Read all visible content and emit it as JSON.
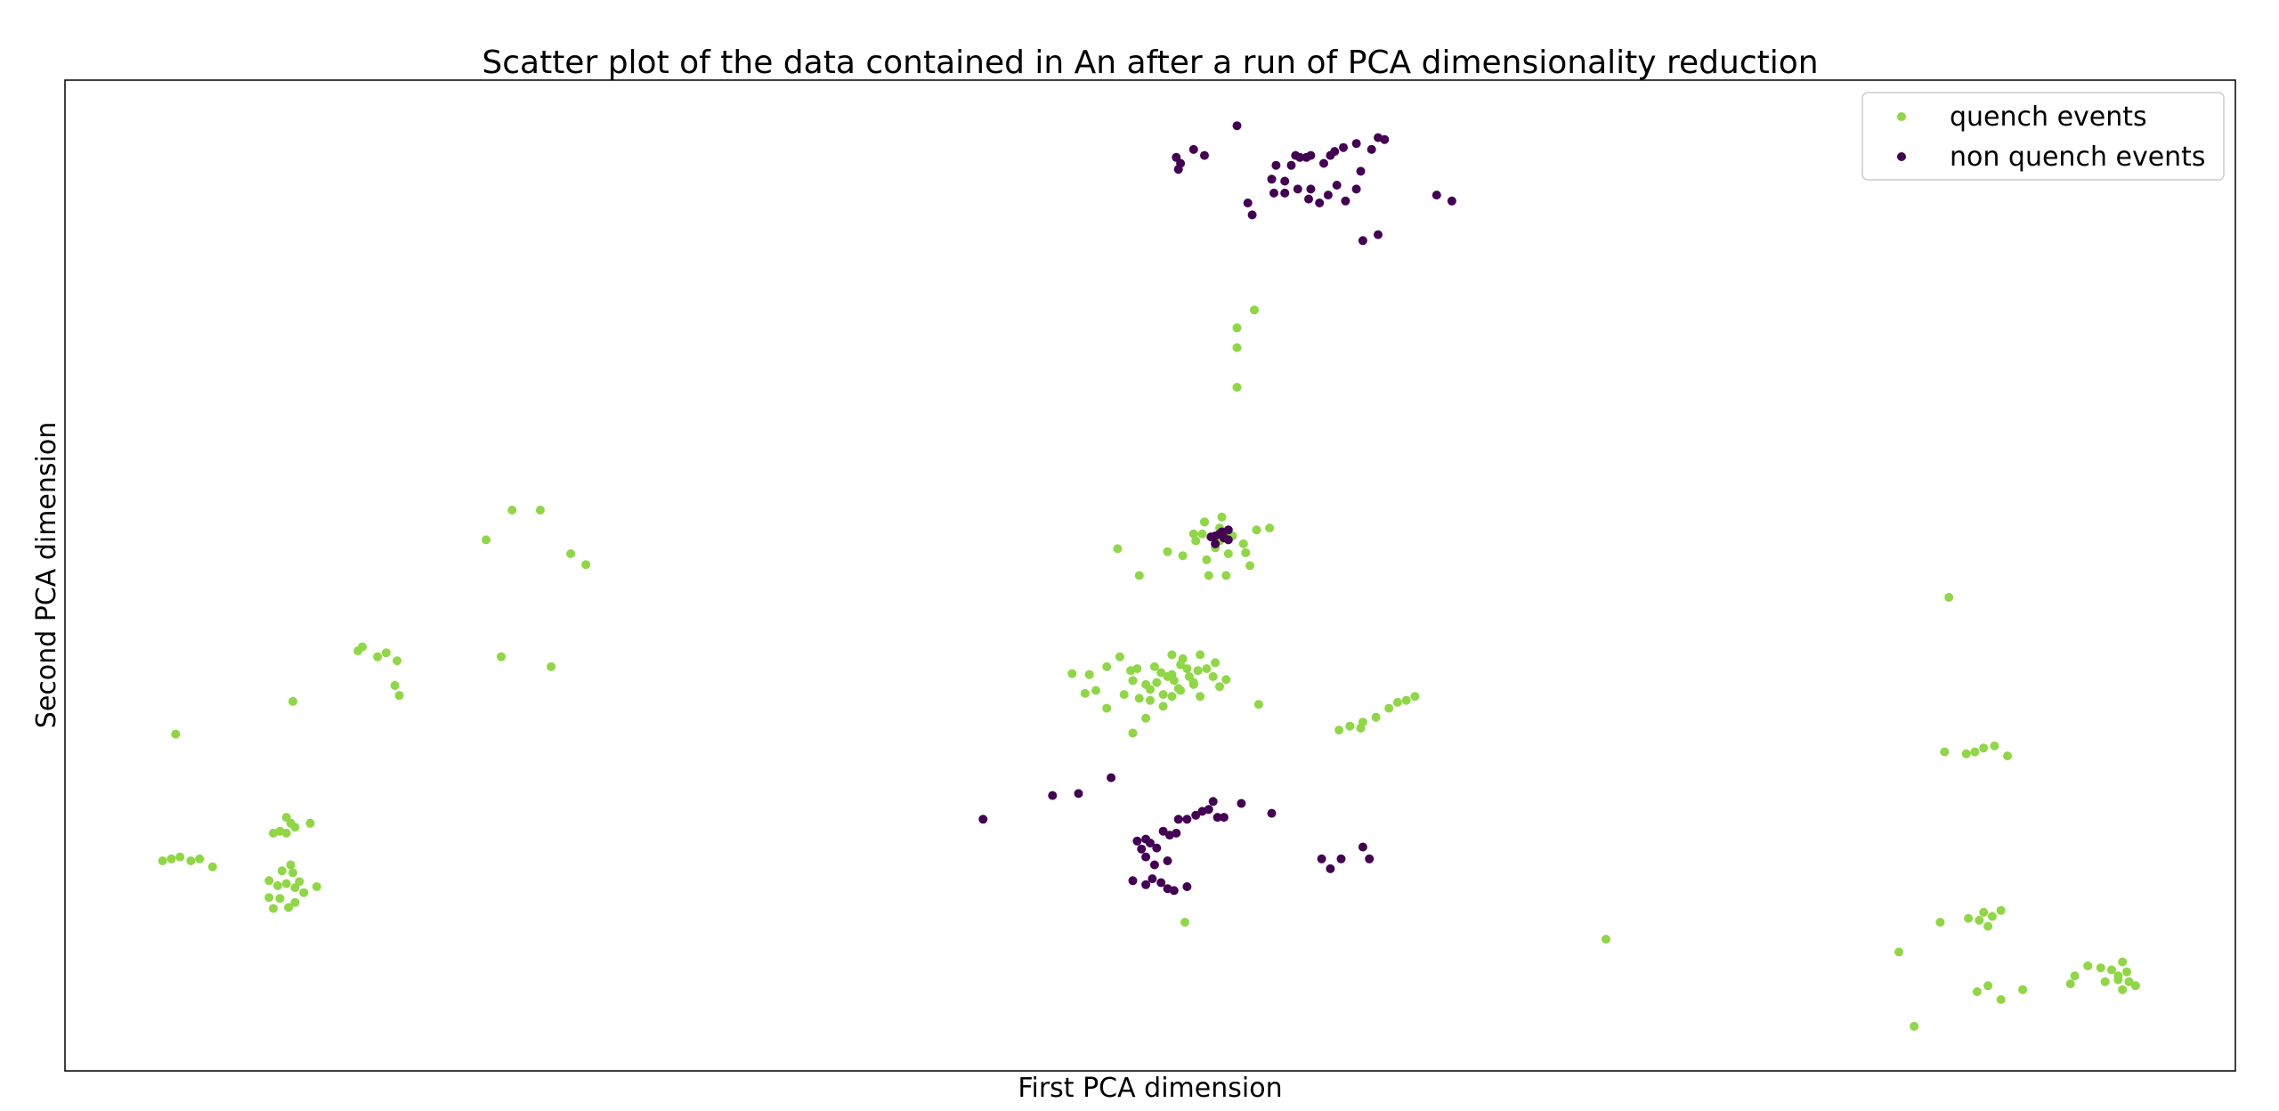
{
  "chart_data": {
    "type": "scatter",
    "title": "Scatter plot of the data contained in An after a run of PCA dimensionality reduction",
    "xlabel": "First PCA dimension",
    "ylabel": "Second PCA dimension",
    "xlim": [
      0,
      100
    ],
    "ylim": [
      0,
      100
    ],
    "xticks": [],
    "yticks": [],
    "grid": false,
    "legend_position": "top-right",
    "series": [
      {
        "name": "quench events",
        "color": "#8fd744",
        "points": [
          [
            5.1,
            34.0
          ],
          [
            4.5,
            21.2
          ],
          [
            4.9,
            21.4
          ],
          [
            5.3,
            21.6
          ],
          [
            5.8,
            21.2
          ],
          [
            6.2,
            21.4
          ],
          [
            6.8,
            20.6
          ],
          [
            9.9,
            24.2
          ],
          [
            9.6,
            24.0
          ],
          [
            10.2,
            24.0
          ],
          [
            10.2,
            25.6
          ],
          [
            10.4,
            25.0
          ],
          [
            10.6,
            24.6
          ],
          [
            11.3,
            25.0
          ],
          [
            9.4,
            19.2
          ],
          [
            9.8,
            18.7
          ],
          [
            10.2,
            18.9
          ],
          [
            10.5,
            20.0
          ],
          [
            10.6,
            18.5
          ],
          [
            10.8,
            19.1
          ],
          [
            11.0,
            18.0
          ],
          [
            10.0,
            20.2
          ],
          [
            10.4,
            20.8
          ],
          [
            9.4,
            17.5
          ],
          [
            9.6,
            16.4
          ],
          [
            9.9,
            17.4
          ],
          [
            10.3,
            16.5
          ],
          [
            10.6,
            17.0
          ],
          [
            11.6,
            18.6
          ],
          [
            10.5,
            37.3
          ],
          [
            13.5,
            42.4
          ],
          [
            13.7,
            42.8
          ],
          [
            14.4,
            41.8
          ],
          [
            14.8,
            42.2
          ],
          [
            15.3,
            41.4
          ],
          [
            15.2,
            38.9
          ],
          [
            15.4,
            37.9
          ],
          [
            19.4,
            53.6
          ],
          [
            20.6,
            56.6
          ],
          [
            21.9,
            56.6
          ],
          [
            23.3,
            52.2
          ],
          [
            24.0,
            51.1
          ],
          [
            20.1,
            41.8
          ],
          [
            22.4,
            40.8
          ],
          [
            54.0,
            75.0
          ],
          [
            54.0,
            73.0
          ],
          [
            54.8,
            76.8
          ],
          [
            54.0,
            69.0
          ],
          [
            48.5,
            52.7
          ],
          [
            49.5,
            50.0
          ],
          [
            50.8,
            52.4
          ],
          [
            52.1,
            53.5
          ],
          [
            53.0,
            52.8
          ],
          [
            53.6,
            52.2
          ],
          [
            52.6,
            51.6
          ],
          [
            51.5,
            52.0
          ],
          [
            52.0,
            54.2
          ],
          [
            52.5,
            55.4
          ],
          [
            53.2,
            54.8
          ],
          [
            53.8,
            54.0
          ],
          [
            54.3,
            53.2
          ],
          [
            54.9,
            54.6
          ],
          [
            55.5,
            54.8
          ],
          [
            52.7,
            50.0
          ],
          [
            53.5,
            50.0
          ],
          [
            54.4,
            52.3
          ],
          [
            54.6,
            51.0
          ],
          [
            53.5,
            54.4
          ],
          [
            53.2,
            53.5
          ],
          [
            52.5,
            55.4
          ],
          [
            53.3,
            55.9
          ],
          [
            52.4,
            54.2
          ],
          [
            47.2,
            40.0
          ],
          [
            48.0,
            40.8
          ],
          [
            48.6,
            41.8
          ],
          [
            49.1,
            40.4
          ],
          [
            49.4,
            40.6
          ],
          [
            48.0,
            36.6
          ],
          [
            49.2,
            39.4
          ],
          [
            49.8,
            39.0
          ],
          [
            50.0,
            38.5
          ],
          [
            50.5,
            40.2
          ],
          [
            51.0,
            40.0
          ],
          [
            51.4,
            41.0
          ],
          [
            51.8,
            39.8
          ],
          [
            52.2,
            40.4
          ],
          [
            50.3,
            39.2
          ],
          [
            50.2,
            40.8
          ],
          [
            50.8,
            39.8
          ],
          [
            51.3,
            38.6
          ],
          [
            49.8,
            35.6
          ],
          [
            50.0,
            37.4
          ],
          [
            49.5,
            37.6
          ],
          [
            51.0,
            37.8
          ],
          [
            51.4,
            38.4
          ],
          [
            52.0,
            39.2
          ],
          [
            51.0,
            42.0
          ],
          [
            51.7,
            40.6
          ],
          [
            52.3,
            37.8
          ],
          [
            53.2,
            38.8
          ],
          [
            55.0,
            37.0
          ],
          [
            48.8,
            38.0
          ],
          [
            50.6,
            36.8
          ],
          [
            49.2,
            34.1
          ],
          [
            47.5,
            38.4
          ],
          [
            46.4,
            40.1
          ],
          [
            47.0,
            38.1
          ],
          [
            52.3,
            42.0
          ],
          [
            52.6,
            40.6
          ],
          [
            52.9,
            39.8
          ],
          [
            53.5,
            39.5
          ],
          [
            53.0,
            41.2
          ],
          [
            51.5,
            41.6
          ],
          [
            52.0,
            39.0
          ],
          [
            50.6,
            38.0
          ],
          [
            51.1,
            39.4
          ],
          [
            58.7,
            34.4
          ],
          [
            59.2,
            34.8
          ],
          [
            59.7,
            34.6
          ],
          [
            59.8,
            35.2
          ],
          [
            60.4,
            35.7
          ],
          [
            61.0,
            36.6
          ],
          [
            61.4,
            37.2
          ],
          [
            61.8,
            37.4
          ],
          [
            62.2,
            37.8
          ],
          [
            51.6,
            15.0
          ],
          [
            71.0,
            13.3
          ],
          [
            84.5,
            12.0
          ],
          [
            85.2,
            4.5
          ],
          [
            86.8,
            47.8
          ],
          [
            86.6,
            32.2
          ],
          [
            87.6,
            32.0
          ],
          [
            88.0,
            32.2
          ],
          [
            88.4,
            32.6
          ],
          [
            88.9,
            32.8
          ],
          [
            89.5,
            31.8
          ],
          [
            86.4,
            15.0
          ],
          [
            87.7,
            15.4
          ],
          [
            88.2,
            15.2
          ],
          [
            88.4,
            16.0
          ],
          [
            88.6,
            14.6
          ],
          [
            88.8,
            15.6
          ],
          [
            89.2,
            16.2
          ],
          [
            88.1,
            8.0
          ],
          [
            88.6,
            8.6
          ],
          [
            89.2,
            7.2
          ],
          [
            90.2,
            8.2
          ],
          [
            92.4,
            8.8
          ],
          [
            92.6,
            9.6
          ],
          [
            93.2,
            10.6
          ],
          [
            93.8,
            10.4
          ],
          [
            94.0,
            9.0
          ],
          [
            94.3,
            10.2
          ],
          [
            94.6,
            9.2
          ],
          [
            94.8,
            11.0
          ],
          [
            94.8,
            8.2
          ],
          [
            95.0,
            10.0
          ],
          [
            95.4,
            8.6
          ],
          [
            95.1,
            9.0
          ],
          [
            94.6,
            9.6
          ]
        ]
      },
      {
        "name": "non quench events",
        "color": "#440154",
        "points": [
          [
            51.2,
            92.2
          ],
          [
            51.4,
            91.6
          ],
          [
            51.3,
            91.0
          ],
          [
            52.0,
            93.0
          ],
          [
            52.5,
            92.4
          ],
          [
            54.0,
            95.4
          ],
          [
            55.6,
            90.0
          ],
          [
            55.8,
            91.4
          ],
          [
            56.2,
            89.8
          ],
          [
            56.5,
            91.4
          ],
          [
            56.7,
            92.4
          ],
          [
            56.9,
            92.2
          ],
          [
            57.2,
            92.2
          ],
          [
            57.4,
            92.4
          ],
          [
            58.0,
            91.6
          ],
          [
            58.3,
            92.4
          ],
          [
            58.5,
            92.8
          ],
          [
            58.9,
            93.2
          ],
          [
            59.5,
            93.6
          ],
          [
            60.2,
            93.0
          ],
          [
            60.5,
            94.2
          ],
          [
            60.8,
            94.0
          ],
          [
            55.7,
            88.6
          ],
          [
            56.2,
            88.6
          ],
          [
            56.8,
            89.0
          ],
          [
            57.4,
            89.0
          ],
          [
            57.3,
            88.0
          ],
          [
            57.8,
            87.6
          ],
          [
            58.2,
            88.4
          ],
          [
            58.6,
            89.4
          ],
          [
            54.5,
            87.6
          ],
          [
            54.7,
            86.4
          ],
          [
            59.0,
            87.8
          ],
          [
            59.7,
            90.8
          ],
          [
            59.5,
            89.0
          ],
          [
            63.2,
            88.4
          ],
          [
            63.9,
            87.8
          ],
          [
            59.8,
            83.8
          ],
          [
            60.5,
            84.4
          ],
          [
            53.0,
            54.0
          ],
          [
            53.3,
            54.4
          ],
          [
            53.6,
            54.6
          ],
          [
            53.4,
            53.8
          ],
          [
            53.0,
            53.2
          ],
          [
            52.8,
            53.9
          ],
          [
            53.6,
            53.6
          ],
          [
            53.2,
            54.2
          ],
          [
            42.3,
            25.4
          ],
          [
            45.5,
            27.8
          ],
          [
            46.7,
            28.0
          ],
          [
            48.2,
            29.6
          ],
          [
            49.6,
            22.4
          ],
          [
            49.4,
            23.2
          ],
          [
            49.8,
            23.4
          ],
          [
            50.0,
            23.0
          ],
          [
            50.3,
            22.5
          ],
          [
            50.6,
            24.2
          ],
          [
            50.9,
            23.8
          ],
          [
            51.2,
            24.0
          ],
          [
            51.3,
            25.4
          ],
          [
            51.7,
            25.4
          ],
          [
            52.1,
            25.8
          ],
          [
            52.4,
            26.2
          ],
          [
            52.7,
            26.4
          ],
          [
            52.9,
            27.2
          ],
          [
            53.1,
            25.6
          ],
          [
            53.4,
            25.6
          ],
          [
            54.2,
            27.0
          ],
          [
            55.6,
            26.0
          ],
          [
            49.8,
            21.6
          ],
          [
            50.2,
            20.8
          ],
          [
            50.8,
            21.2
          ],
          [
            49.2,
            19.2
          ],
          [
            49.8,
            18.8
          ],
          [
            50.1,
            19.4
          ],
          [
            50.5,
            19.0
          ],
          [
            50.8,
            18.4
          ],
          [
            51.1,
            18.2
          ],
          [
            51.7,
            18.6
          ],
          [
            57.9,
            21.4
          ],
          [
            58.3,
            20.4
          ],
          [
            58.8,
            21.4
          ],
          [
            59.8,
            22.6
          ],
          [
            60.1,
            21.4
          ]
        ]
      }
    ]
  }
}
